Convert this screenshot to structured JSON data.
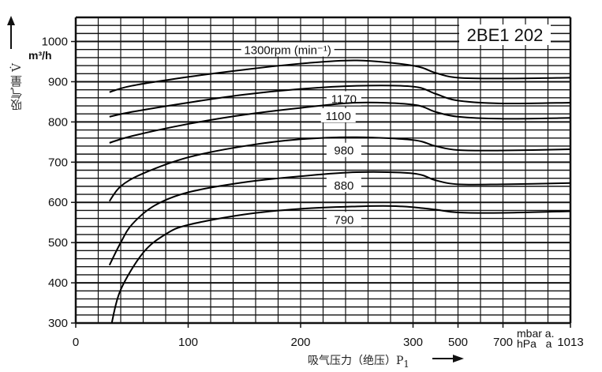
{
  "chart_data": {
    "type": "line",
    "title": "2BE1 202",
    "xlabel": "吸气压力（绝压）P",
    "xlabel_subscript": "1",
    "x_unit_top": "mbar a.",
    "x_unit_bottom": "hPa   a",
    "ylabel": "吸气量 V̇",
    "y_unit": "m³/h",
    "x_ticks": [
      0,
      100,
      200,
      300,
      500,
      700,
      1013
    ],
    "x_tick_labels": [
      "0",
      "100",
      "200",
      "300",
      "500",
      "700",
      "1013"
    ],
    "y_ticks": [
      300,
      400,
      500,
      600,
      700,
      800,
      900,
      1000
    ],
    "y_tick_labels": [
      "300",
      "400",
      "500",
      "600",
      "700",
      "800",
      "900",
      "1000"
    ],
    "ylim": [
      300,
      1060
    ],
    "xlim": [
      0,
      1013
    ],
    "grid": true,
    "series": [
      {
        "name": "1300rpm (min⁻¹)",
        "label_at": 185,
        "x": [
          30,
          50,
          100,
          150,
          200,
          250,
          300,
          400,
          500,
          700,
          1013
        ],
        "y": [
          874,
          890,
          912,
          930,
          945,
          953,
          940,
          922,
          910,
          908,
          910
        ]
      },
      {
        "name": "1170",
        "label_at": 235,
        "x": [
          30,
          50,
          100,
          150,
          200,
          250,
          300,
          400,
          500,
          700,
          1013
        ],
        "y": [
          813,
          825,
          848,
          868,
          882,
          890,
          888,
          870,
          853,
          846,
          848
        ]
      },
      {
        "name": "1100",
        "label_at": 230,
        "x": [
          30,
          50,
          100,
          150,
          200,
          250,
          300,
          400,
          500,
          700,
          1013
        ],
        "y": [
          748,
          765,
          795,
          818,
          835,
          848,
          843,
          825,
          813,
          808,
          810
        ]
      },
      {
        "name": "980",
        "label_at": 235,
        "x": [
          30,
          40,
          60,
          100,
          150,
          200,
          250,
          300,
          400,
          500,
          700,
          1013
        ],
        "y": [
          603,
          640,
          672,
          712,
          740,
          757,
          762,
          755,
          740,
          730,
          729,
          732
        ]
      },
      {
        "name": "880",
        "label_at": 235,
        "x": [
          30,
          40,
          50,
          70,
          100,
          150,
          200,
          250,
          300,
          400,
          500,
          700,
          1013
        ],
        "y": [
          444,
          500,
          545,
          592,
          625,
          650,
          665,
          675,
          672,
          655,
          645,
          645,
          648
        ]
      },
      {
        "name": "790",
        "label_at": 235,
        "x": [
          32,
          40,
          60,
          80,
          100,
          150,
          200,
          250,
          280,
          300,
          400,
          500,
          700,
          1013
        ],
        "y": [
          300,
          383,
          475,
          521,
          544,
          570,
          584,
          590,
          591,
          588,
          582,
          575,
          574,
          578
        ]
      }
    ]
  }
}
